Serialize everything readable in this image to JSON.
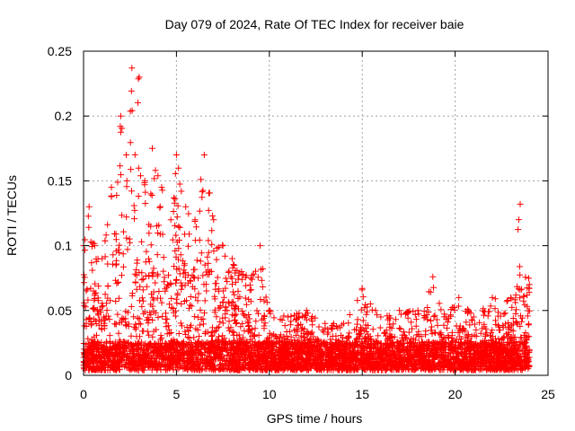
{
  "chart_data": {
    "type": "scatter",
    "title": "Day 079 of 2024, Rate Of TEC Index for receiver baie",
    "xlabel": "GPS time / hours",
    "ylabel": "ROTI / TECUs",
    "xlim": [
      0,
      25
    ],
    "ylim": [
      0,
      0.25
    ],
    "x_ticks": [
      "0",
      "5",
      "10",
      "15",
      "20",
      "25"
    ],
    "y_ticks": [
      "0",
      "0.05",
      "0.1",
      "0.15",
      "0.2",
      "0.25"
    ],
    "grid": true,
    "marker": "plus",
    "series_color": "#ff0000",
    "series": [
      {
        "x_start": 0.0,
        "x_end": 24.0,
        "envelope_note": "",
        "envelope": [
          {
            "x": 0.0,
            "y": 0.1
          },
          {
            "x": 0.3,
            "y": 0.13
          },
          {
            "x": 0.6,
            "y": 0.1
          },
          {
            "x": 1.0,
            "y": 0.09
          },
          {
            "x": 1.5,
            "y": 0.145
          },
          {
            "x": 2.0,
            "y": 0.2
          },
          {
            "x": 2.3,
            "y": 0.17
          },
          {
            "x": 2.6,
            "y": 0.237
          },
          {
            "x": 3.0,
            "y": 0.23
          },
          {
            "x": 3.3,
            "y": 0.15
          },
          {
            "x": 3.7,
            "y": 0.175
          },
          {
            "x": 4.2,
            "y": 0.145
          },
          {
            "x": 4.7,
            "y": 0.12
          },
          {
            "x": 5.0,
            "y": 0.17
          },
          {
            "x": 5.5,
            "y": 0.13
          },
          {
            "x": 6.0,
            "y": 0.12
          },
          {
            "x": 6.5,
            "y": 0.17
          },
          {
            "x": 7.0,
            "y": 0.12
          },
          {
            "x": 7.5,
            "y": 0.1
          },
          {
            "x": 8.0,
            "y": 0.09
          },
          {
            "x": 8.5,
            "y": 0.08
          },
          {
            "x": 9.0,
            "y": 0.075
          },
          {
            "x": 9.5,
            "y": 0.1
          },
          {
            "x": 10.0,
            "y": 0.05
          },
          {
            "x": 11.0,
            "y": 0.045
          },
          {
            "x": 12.0,
            "y": 0.05
          },
          {
            "x": 13.0,
            "y": 0.04
          },
          {
            "x": 14.0,
            "y": 0.04
          },
          {
            "x": 15.0,
            "y": 0.067
          },
          {
            "x": 16.0,
            "y": 0.045
          },
          {
            "x": 17.0,
            "y": 0.05
          },
          {
            "x": 18.0,
            "y": 0.05
          },
          {
            "x": 18.8,
            "y": 0.076
          },
          {
            "x": 19.5,
            "y": 0.045
          },
          {
            "x": 20.2,
            "y": 0.06
          },
          {
            "x": 21.0,
            "y": 0.045
          },
          {
            "x": 22.0,
            "y": 0.06
          },
          {
            "x": 23.0,
            "y": 0.06
          },
          {
            "x": 23.5,
            "y": 0.132
          },
          {
            "x": 24.0,
            "y": 0.07
          }
        ]
      }
    ]
  }
}
